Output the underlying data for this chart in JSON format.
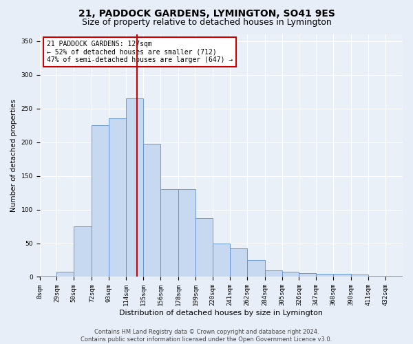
{
  "title": "21, PADDOCK GARDENS, LYMINGTON, SO41 9ES",
  "subtitle": "Size of property relative to detached houses in Lymington",
  "xlabel": "Distribution of detached houses by size in Lymington",
  "ylabel": "Number of detached properties",
  "bar_labels": [
    "8sqm",
    "29sqm",
    "50sqm",
    "72sqm",
    "93sqm",
    "114sqm",
    "135sqm",
    "156sqm",
    "178sqm",
    "199sqm",
    "220sqm",
    "241sqm",
    "262sqm",
    "284sqm",
    "305sqm",
    "326sqm",
    "347sqm",
    "368sqm",
    "390sqm",
    "411sqm",
    "432sqm"
  ],
  "hist_values": [
    2,
    8,
    75,
    225,
    235,
    265,
    198,
    130,
    130,
    87,
    50,
    42,
    25,
    10,
    8,
    6,
    5,
    5,
    4,
    2,
    2
  ],
  "bar_color": "#c6d9f0",
  "bar_edge_color": "#5b8fcc",
  "vline_x": 127,
  "vline_color": "#cc0000",
  "annotation_text": "21 PADDOCK GARDENS: 127sqm\n← 52% of detached houses are smaller (712)\n47% of semi-detached houses are larger (647) →",
  "annotation_box_color": "#cc0000",
  "ylim": [
    0,
    360
  ],
  "yticks": [
    0,
    50,
    100,
    150,
    200,
    250,
    300,
    350
  ],
  "bin_edges": [
    8,
    29,
    50,
    72,
    93,
    114,
    135,
    156,
    178,
    199,
    220,
    241,
    262,
    284,
    305,
    326,
    347,
    368,
    390,
    411,
    432,
    453
  ],
  "footer": "Contains HM Land Registry data © Crown copyright and database right 2024.\nContains public sector information licensed under the Open Government Licence v3.0.",
  "bg_color": "#e8eef7",
  "plot_bg_color": "#eaf0f8",
  "grid_color": "#ffffff",
  "title_fontsize": 10,
  "subtitle_fontsize": 9,
  "xlabel_fontsize": 8,
  "ylabel_fontsize": 7.5,
  "tick_fontsize": 6.5,
  "footer_fontsize": 6,
  "annot_fontsize": 7
}
